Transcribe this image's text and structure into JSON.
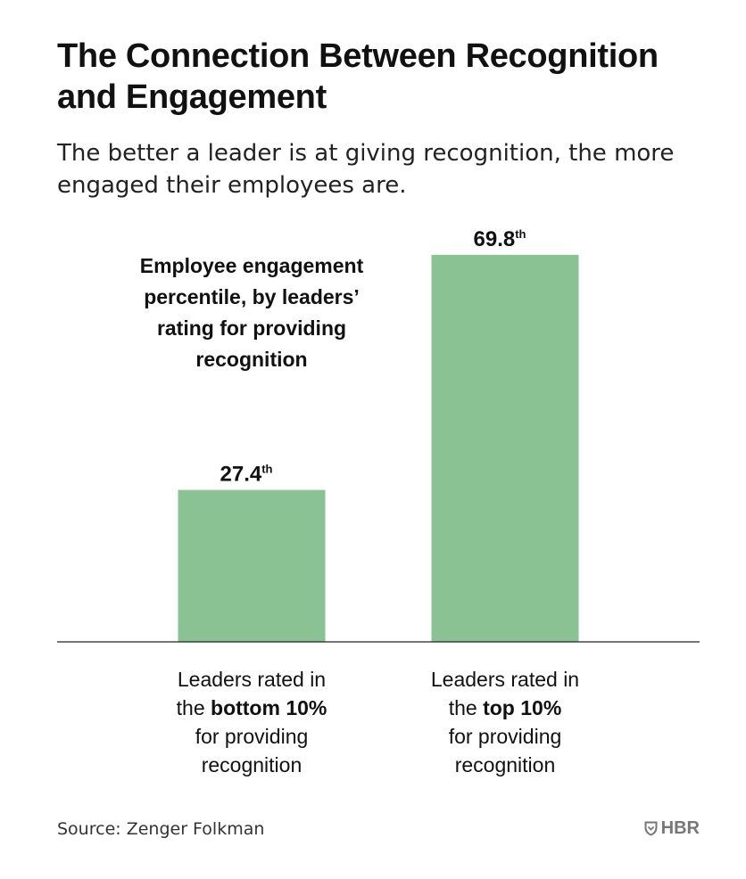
{
  "header": {
    "title": "The Connection Between Recognition and Engagement",
    "subtitle": "The better a leader is at giving recognition, the more engaged their employees are."
  },
  "chart_data": {
    "type": "bar",
    "title": "Employee engagement percentile, by leaders’ rating for providing recognition",
    "title_lines": [
      "Employee engagement",
      "percentile, by leaders’",
      "rating for providing",
      "recognition"
    ],
    "categories": [
      "Leaders rated in the bottom 10% for providing recognition",
      "Leaders rated in the top 10% for providing recognition"
    ],
    "category_lines": [
      [
        [
          {
            "t": "Leaders rated in",
            "b": false
          }
        ],
        [
          {
            "t": "the ",
            "b": false
          },
          {
            "t": "bottom 10%",
            "b": true
          }
        ],
        [
          {
            "t": "for providing",
            "b": false
          }
        ],
        [
          {
            "t": "recognition",
            "b": false
          }
        ]
      ],
      [
        [
          {
            "t": "Leaders rated in",
            "b": false
          }
        ],
        [
          {
            "t": "the ",
            "b": false
          },
          {
            "t": "top 10%",
            "b": true
          }
        ],
        [
          {
            "t": "for providing",
            "b": false
          }
        ],
        [
          {
            "t": "recognition",
            "b": false
          }
        ]
      ]
    ],
    "values": [
      27.4,
      69.8
    ],
    "value_labels": [
      "27.4",
      "69.8"
    ],
    "value_suffix": "th",
    "ylim": [
      0,
      100
    ],
    "grid": false,
    "bar_color": "#8bc294",
    "axis_color": "#222222"
  },
  "footer": {
    "source": "Source: Zenger Folkman",
    "logo_text": "HBR",
    "logo_icon": "hbr-shield-icon",
    "logo_color": "#777777"
  }
}
